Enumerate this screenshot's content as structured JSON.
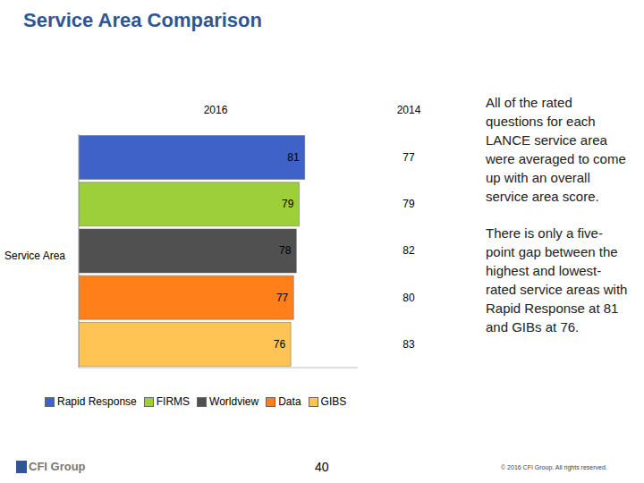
{
  "chart_data": {
    "type": "bar",
    "title": "Service Area Comparison",
    "orientation": "horizontal",
    "y_label": "Service Area",
    "categories": [
      "Rapid Response",
      "FIRMS",
      "Worldview",
      "Data",
      "GIBS"
    ],
    "series": [
      {
        "name": "2016",
        "type": "bar",
        "values": [
          81,
          79,
          78,
          77,
          76
        ],
        "colors": [
          "#3f62c8",
          "#9dcf3a",
          "#505050",
          "#ff7f1a",
          "#ffc454"
        ]
      },
      {
        "name": "2014",
        "type": "text",
        "values": [
          77,
          79,
          82,
          80,
          83
        ]
      }
    ],
    "xlim": [
      0,
      100
    ],
    "tick_labels": false,
    "grid": false,
    "legend": "bottom",
    "data_labels": true,
    "notes": [
      "All of the rated questions for each LANCE service area were averaged to come up with an overall service area score.",
      "There is only a five-point gap between the highest and lowest-rated service areas with Rapid Response at 81 and GIBs at 76."
    ],
    "logo": "CFI Group",
    "page": 40,
    "copyright": "© 2016 CFI Group. All rights reserved."
  }
}
